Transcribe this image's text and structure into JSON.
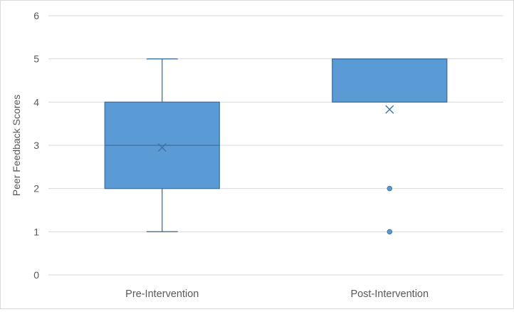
{
  "chart_data": {
    "type": "box",
    "title": "",
    "xlabel": "",
    "ylabel": "Peer Feedback Scores",
    "ylim": [
      0,
      6
    ],
    "yticks": [
      0,
      1,
      2,
      3,
      4,
      5,
      6
    ],
    "ytick_labels": [
      "0",
      "1",
      "2",
      "3",
      "4",
      "5",
      "6"
    ],
    "grid": true,
    "legend": "none",
    "categories": [
      "Pre-Intervention",
      "Post-Intervention"
    ],
    "series": [
      {
        "category": "Pre-Intervention",
        "min": 1,
        "q1": 2,
        "median": 3,
        "q3": 4,
        "max": 5,
        "mean": 2.95,
        "outliers": []
      },
      {
        "category": "Post-Intervention",
        "min": 4,
        "q1": 4,
        "median": 5,
        "q3": 5,
        "max": 5,
        "mean": 3.83,
        "outliers": [
          2,
          1
        ]
      }
    ],
    "colors": {
      "box_fill": "#5b9bd5",
      "box_stroke": "#41719c",
      "whisker": "#41719c",
      "grid": "#d9d9d9",
      "text": "#595959"
    }
  }
}
